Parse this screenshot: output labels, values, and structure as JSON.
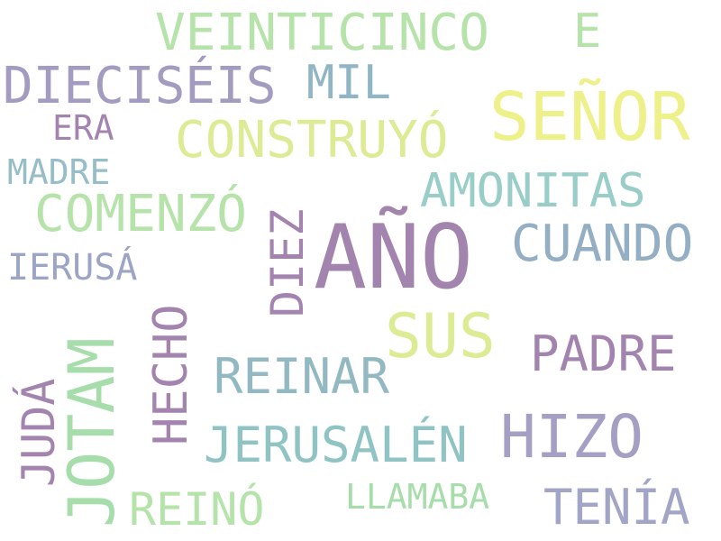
{
  "words": [
    {
      "text": "AÑO",
      "color": "#a384ae"
    },
    {
      "text": "SEÑOR",
      "color": "#eef08a"
    },
    {
      "text": "JOTAM",
      "color": "#a6ddab"
    },
    {
      "text": "HIZO",
      "color": "#a49fc3"
    },
    {
      "text": "SUS",
      "color": "#dcec95"
    },
    {
      "text": "VEINTICINCO",
      "color": "#b5e3a9"
    },
    {
      "text": "DIECISÉIS",
      "color": "#a39bc0"
    },
    {
      "text": "CONSTRUYÓ",
      "color": "#dceb94"
    },
    {
      "text": "COMENZÓ",
      "color": "#b5e3a9"
    },
    {
      "text": "CUANDO",
      "color": "#94aec4"
    },
    {
      "text": "AMONITAS",
      "color": "#98cdc8"
    },
    {
      "text": "JERUSALÉN",
      "color": "#90c3c3"
    },
    {
      "text": "REINAR",
      "color": "#92b8c2"
    },
    {
      "text": "PADRE",
      "color": "#a384ae"
    },
    {
      "text": "TENÍA",
      "color": "#a3a5c6"
    },
    {
      "text": "REINÓ",
      "color": "#b5e3a9"
    },
    {
      "text": "HECHO",
      "color": "#a384ae"
    },
    {
      "text": "DIEZ",
      "color": "#a384ae"
    },
    {
      "text": "JUDÁ",
      "color": "#a384ae"
    },
    {
      "text": "MIL",
      "color": "#90b6c6"
    },
    {
      "text": "E",
      "color": "#b5e3a9"
    },
    {
      "text": "IERUSÁ",
      "color": "#9ca5c6"
    },
    {
      "text": "MADRE",
      "color": "#96bdc8"
    },
    {
      "text": "ERA",
      "color": "#a384ae"
    },
    {
      "text": "LLAMABA",
      "color": "#a6ddab"
    }
  ]
}
